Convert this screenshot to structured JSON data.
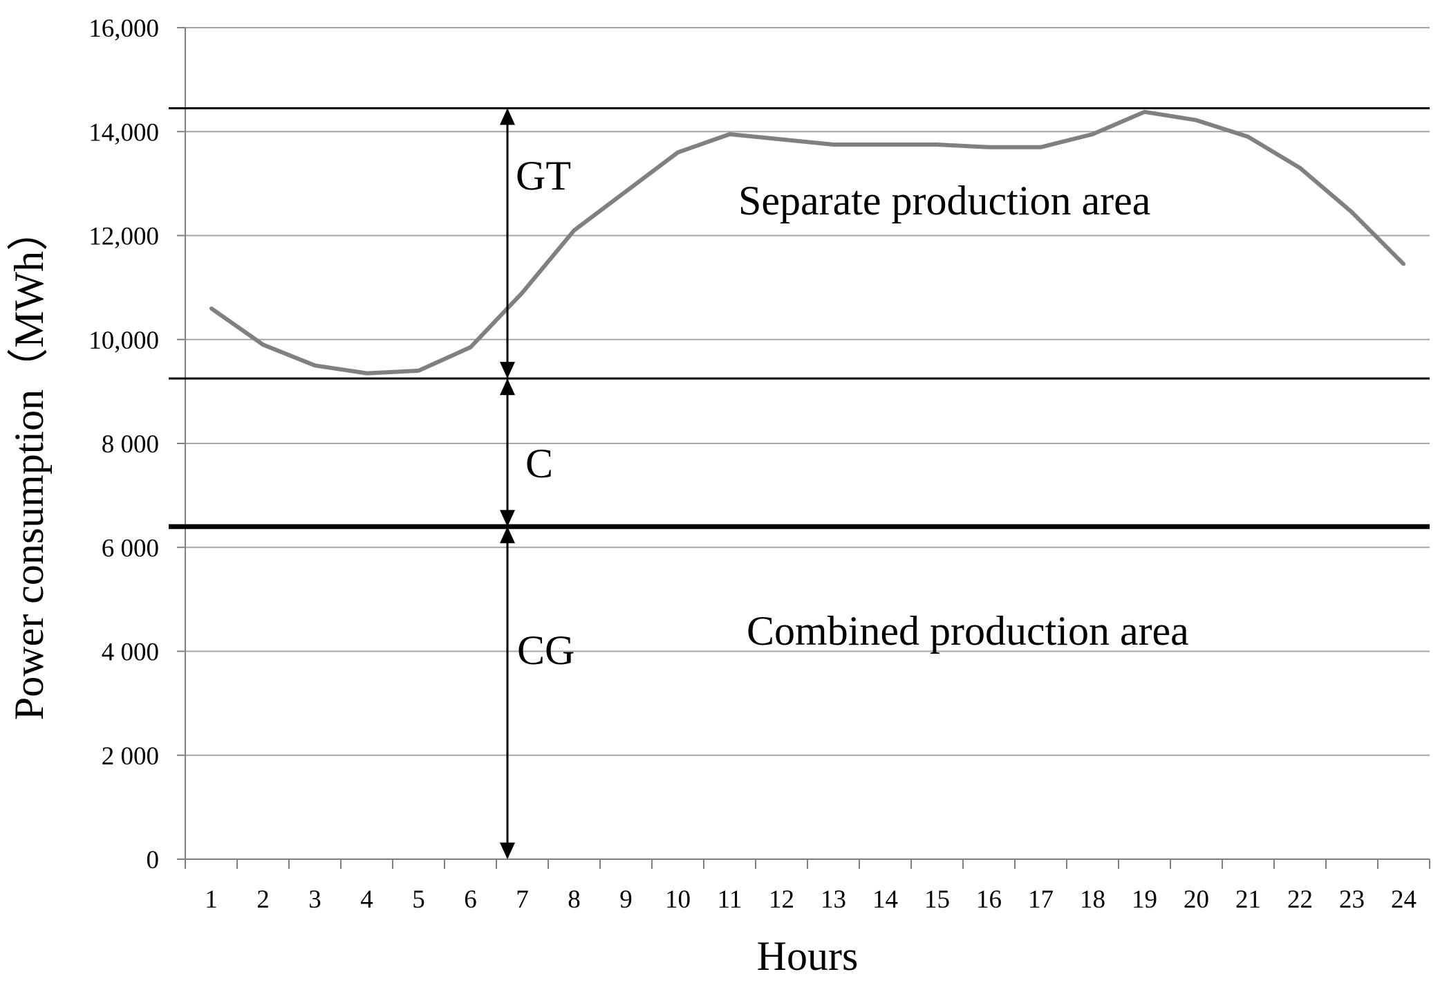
{
  "chart_data": {
    "type": "line",
    "xlabel": "Hours",
    "ylabel": "Power consumption（MWh）",
    "categories": [
      "1",
      "2",
      "3",
      "4",
      "5",
      "6",
      "7",
      "8",
      "9",
      "10",
      "11",
      "12",
      "13",
      "14",
      "15",
      "16",
      "17",
      "18",
      "19",
      "20",
      "21",
      "22",
      "23",
      "24"
    ],
    "y_tick_labels": [
      "0",
      "2 000",
      "4 000",
      "6 000",
      "8 000",
      "10,000",
      "12,000",
      "14,000",
      "16,000"
    ],
    "y_tick_values": [
      0,
      2000,
      4000,
      6000,
      8000,
      10000,
      12000,
      14000,
      16000
    ],
    "ylim": [
      0,
      16000
    ],
    "grid": true,
    "legend": "none",
    "series": [
      {
        "values": [
          10600,
          9900,
          9500,
          9350,
          9400,
          9850,
          10900,
          12100,
          12850,
          13600,
          13950,
          13850,
          13750,
          13750,
          13750,
          13700,
          13700,
          13950,
          14380,
          14220,
          13900,
          13300,
          12450,
          11450
        ],
        "color": "#808080"
      }
    ],
    "reference_lines": [
      {
        "y": 14450,
        "weight": "thin"
      },
      {
        "y": 9250,
        "weight": "thin"
      },
      {
        "y": 6400,
        "weight": "thick"
      }
    ],
    "annotations": {
      "gt": "GT",
      "c": "C",
      "cg": "CG",
      "separate_area": "Separate production area",
      "combined_area": "Combined production area"
    },
    "arrows": [
      {
        "label": "GT",
        "from": 9250,
        "to": 14450
      },
      {
        "label": "C",
        "from": 6400,
        "to": 9250
      },
      {
        "label": "CG",
        "from": 0,
        "to": 6400
      }
    ]
  }
}
